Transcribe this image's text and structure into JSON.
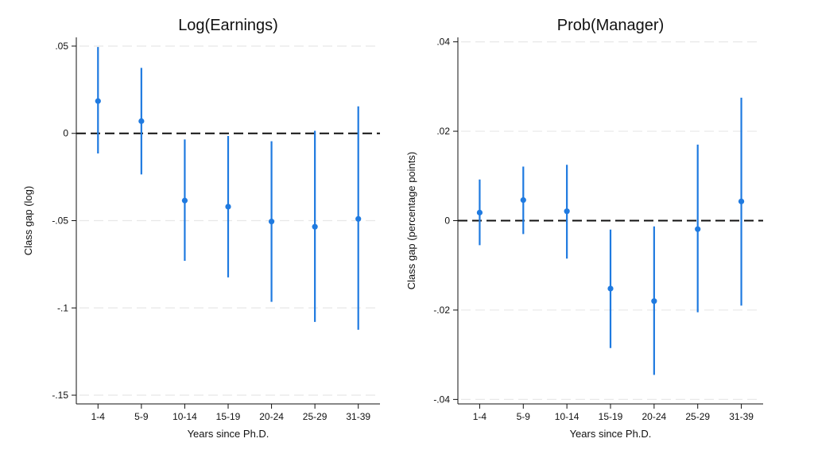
{
  "chart_data": [
    {
      "type": "scatter",
      "title": "Log(Earnings)",
      "xlabel": "Years since Ph.D.",
      "ylabel": "Class gap (log)",
      "categories": [
        "1-4",
        "5-9",
        "10-14",
        "15-19",
        "20-24",
        "25-29",
        "31-39"
      ],
      "ylim": [
        -0.155,
        0.055
      ],
      "yticks": [
        -0.15,
        -0.1,
        -0.05,
        0,
        0.05
      ],
      "ytick_labels": [
        "-.15",
        "-.1",
        "-.05",
        "0",
        ".05"
      ],
      "reference_line": 0,
      "grid": true,
      "color": "#1f7ae0",
      "series": [
        {
          "values": [
            0.0185,
            0.007,
            -0.0385,
            -0.042,
            -0.0505,
            -0.0535,
            -0.049
          ],
          "ci_low": [
            -0.0115,
            -0.0235,
            -0.073,
            -0.0825,
            -0.0965,
            -0.108,
            -0.1125
          ],
          "ci_high": [
            0.0495,
            0.0375,
            -0.0035,
            -0.0015,
            -0.0045,
            0.0015,
            0.0155
          ]
        }
      ]
    },
    {
      "type": "scatter",
      "title": "Prob(Manager)",
      "xlabel": "Years since Ph.D.",
      "ylabel": "Class gap (percentage points)",
      "categories": [
        "1-4",
        "5-9",
        "10-14",
        "15-19",
        "20-24",
        "25-29",
        "31-39"
      ],
      "ylim": [
        -0.041,
        0.041
      ],
      "yticks": [
        -0.04,
        -0.02,
        0,
        0.02,
        0.04
      ],
      "ytick_labels": [
        "-.04",
        "-.02",
        "0",
        ".02",
        ".04"
      ],
      "reference_line": 0,
      "grid": true,
      "color": "#1f7ae0",
      "series": [
        {
          "values": [
            0.0018,
            0.0046,
            0.0021,
            -0.0152,
            -0.018,
            -0.0019,
            0.0043
          ],
          "ci_low": [
            -0.0055,
            -0.003,
            -0.0085,
            -0.0285,
            -0.0345,
            -0.0205,
            -0.019
          ],
          "ci_high": [
            0.0092,
            0.0121,
            0.0125,
            -0.002,
            -0.0013,
            0.017,
            0.0275
          ]
        }
      ]
    }
  ]
}
